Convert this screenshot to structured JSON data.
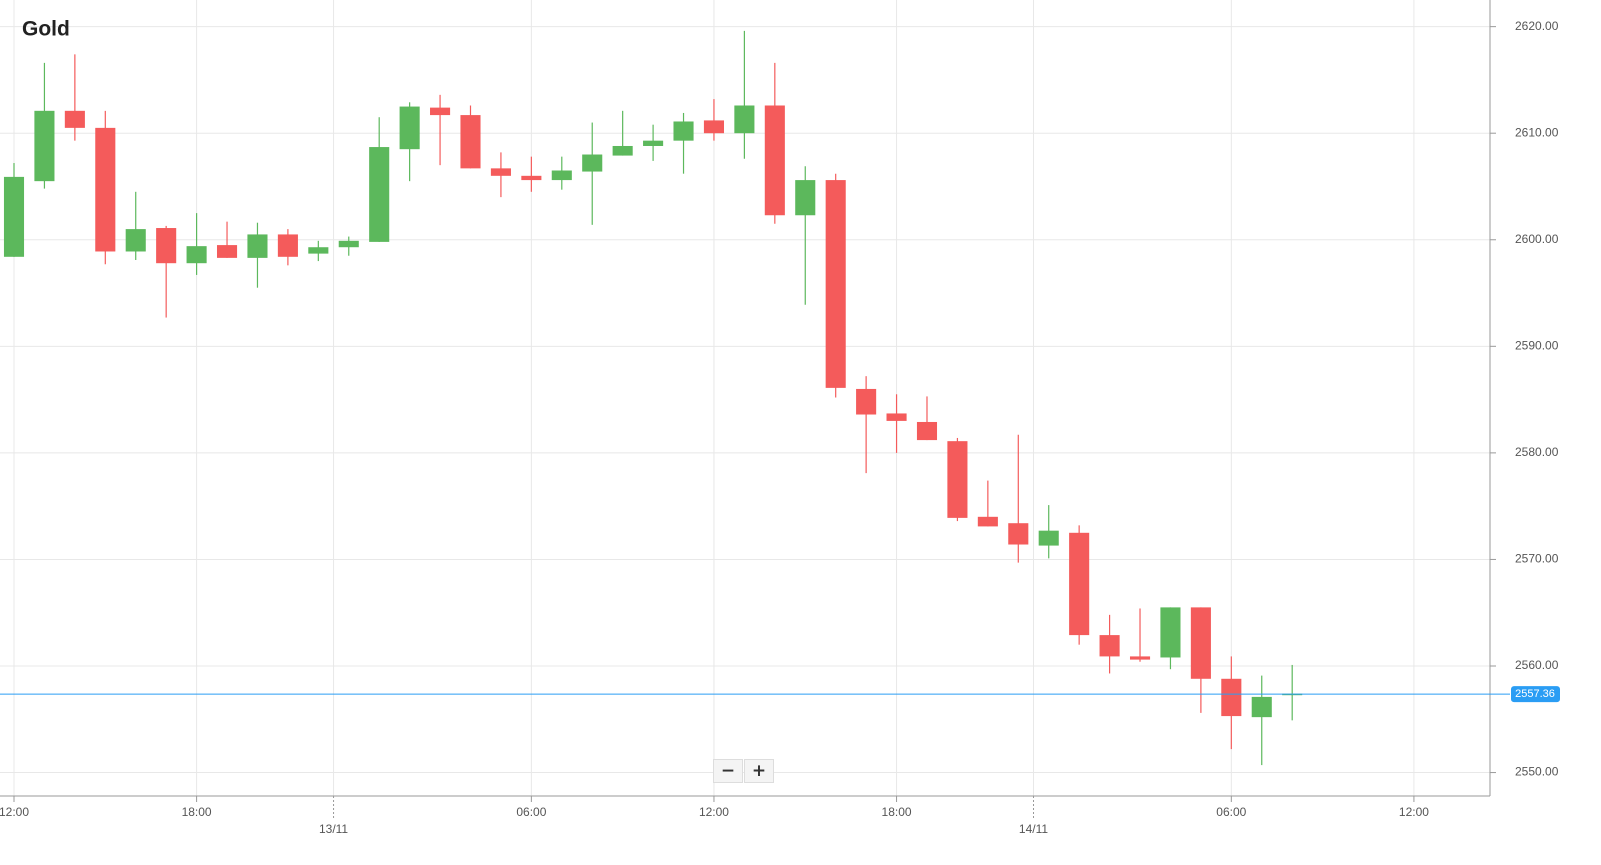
{
  "chart_data": {
    "type": "candlestick",
    "title": "Gold",
    "x": [
      0,
      1,
      2,
      3,
      4,
      5,
      6,
      7,
      8,
      9,
      10,
      11,
      12,
      13,
      14,
      15,
      16,
      17,
      18,
      19,
      20,
      21,
      22,
      23,
      24,
      25,
      26,
      27,
      28,
      29,
      30,
      31,
      32,
      33,
      34,
      35,
      36,
      37,
      38,
      39,
      40,
      41,
      42
    ],
    "open": [
      2598.4,
      2605.5,
      2612.1,
      2610.5,
      2598.9,
      2601.1,
      2597.8,
      2599.5,
      2598.3,
      2600.5,
      2598.7,
      2599.3,
      2599.8,
      2608.5,
      2612.4,
      2611.7,
      2606.7,
      2606.0,
      2605.6,
      2606.4,
      2607.9,
      2608.8,
      2609.3,
      2611.2,
      2610.0,
      2612.6,
      2602.3,
      2605.6,
      2586.0,
      2583.7,
      2582.9,
      2581.1,
      2574.0,
      2573.4,
      2571.3,
      2572.5,
      2562.9,
      2560.9,
      2560.8,
      2565.5,
      2558.8,
      2555.2,
      2557.3
    ],
    "high": [
      2607.2,
      2616.6,
      2617.4,
      2612.1,
      2604.5,
      2601.3,
      2602.5,
      2601.7,
      2601.6,
      2601.0,
      2599.9,
      2600.3,
      2611.5,
      2612.9,
      2613.6,
      2612.6,
      2608.2,
      2607.8,
      2607.8,
      2611.0,
      2612.1,
      2610.8,
      2611.9,
      2613.2,
      2619.6,
      2616.6,
      2606.9,
      2606.2,
      2587.2,
      2585.5,
      2585.3,
      2581.4,
      2577.4,
      2581.7,
      2575.1,
      2573.2,
      2564.8,
      2565.4,
      2565.5,
      2565.5,
      2560.9,
      2559.1,
      2560.1
    ],
    "low": [
      2598.4,
      2604.8,
      2609.3,
      2597.7,
      2598.1,
      2592.7,
      2596.7,
      2598.3,
      2595.5,
      2597.6,
      2598.0,
      2598.5,
      2599.8,
      2605.5,
      2607.0,
      2606.7,
      2604.0,
      2604.5,
      2604.7,
      2601.4,
      2607.9,
      2607.4,
      2606.2,
      2609.3,
      2607.6,
      2601.5,
      2593.9,
      2585.2,
      2578.1,
      2580.0,
      2581.2,
      2573.6,
      2573.1,
      2569.7,
      2570.1,
      2562.0,
      2559.3,
      2560.4,
      2559.7,
      2555.6,
      2552.2,
      2550.7,
      2554.9
    ],
    "close": [
      2605.9,
      2612.1,
      2610.5,
      2598.9,
      2601.0,
      2597.8,
      2599.4,
      2598.3,
      2600.5,
      2598.4,
      2599.3,
      2599.9,
      2608.7,
      2612.5,
      2611.7,
      2606.7,
      2606.0,
      2605.6,
      2606.5,
      2608.0,
      2608.8,
      2609.3,
      2611.1,
      2610.0,
      2612.6,
      2602.3,
      2605.6,
      2586.1,
      2583.6,
      2583.0,
      2581.2,
      2573.9,
      2573.1,
      2571.4,
      2572.7,
      2562.9,
      2560.9,
      2560.6,
      2565.5,
      2558.8,
      2555.3,
      2557.1,
      2557.4
    ],
    "up_color": "#5cb85c",
    "down_color": "#f45b5b",
    "xlim": [
      -0.46,
      48.5
    ],
    "xticks": [
      {
        "value": 0,
        "label": "12:00"
      },
      {
        "value": 6,
        "label": "18:00"
      },
      {
        "value": 17,
        "label": "06:00"
      },
      {
        "value": 23,
        "label": "12:00"
      },
      {
        "value": 29,
        "label": "18:00"
      },
      {
        "value": 40,
        "label": "06:00"
      },
      {
        "value": 46,
        "label": "12:00"
      }
    ],
    "date_ticks": [
      {
        "value": 10.5,
        "label": "13/11"
      },
      {
        "value": 33.5,
        "label": "14/11"
      }
    ],
    "ylim": [
      2547.8,
      2622.5
    ],
    "yticks": [
      {
        "value": 2550,
        "label": "2550.00"
      },
      {
        "value": 2560,
        "label": "2560.00"
      },
      {
        "value": 2570,
        "label": "2570.00"
      },
      {
        "value": 2580,
        "label": "2580.00"
      },
      {
        "value": 2590,
        "label": "2590.00"
      },
      {
        "value": 2600,
        "label": "2600.00"
      },
      {
        "value": 2610,
        "label": "2610.00"
      },
      {
        "value": 2620,
        "label": "2620.00"
      }
    ],
    "last_price": 2557.36,
    "last_price_color": "#2a9df4",
    "grid": true
  },
  "controls": {
    "zoom_out": "−",
    "zoom_in": "+"
  }
}
